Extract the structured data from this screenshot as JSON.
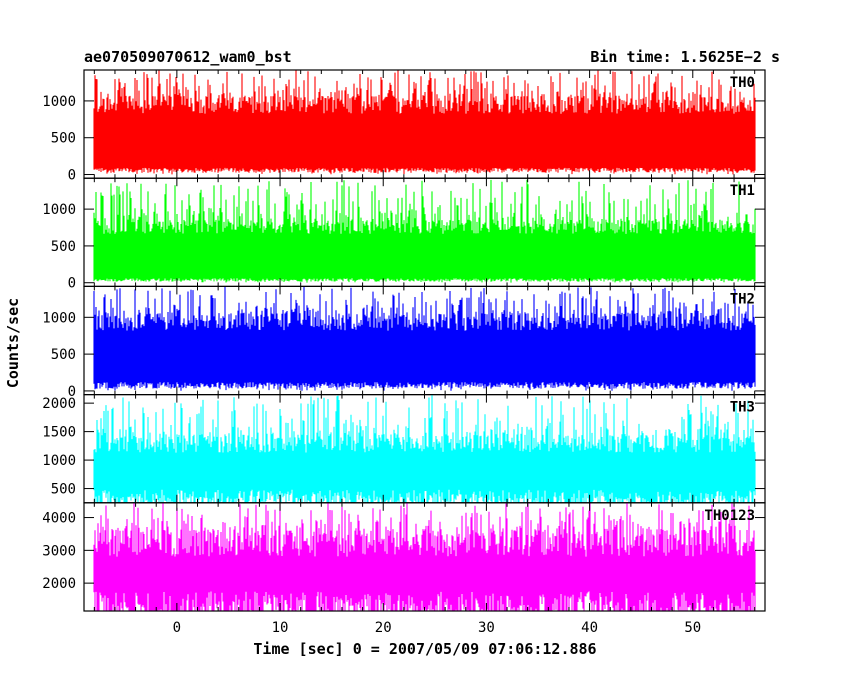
{
  "chart_data": {
    "type": "line",
    "title_left": "ae070509070612_wam0_bst",
    "title_right": "Bin time: 1.5625E−2 s",
    "xlabel": "Time [sec] 0 = 2007/05/09 07:06:12.886",
    "ylabel": "Counts/sec",
    "xlim": [
      -9,
      57
    ],
    "x_data_range": [
      -8,
      56
    ],
    "xticks": [
      0,
      10,
      20,
      30,
      40,
      50
    ],
    "xtick_labels": [
      "0",
      "10",
      "20",
      "30",
      "40",
      "50"
    ],
    "grid": false,
    "panels": [
      {
        "name": "TH0",
        "color": "#ff0000",
        "ylim": [
          -50,
          1420
        ],
        "yticks": [
          0,
          500,
          1000
        ],
        "ytick_labels": [
          "0",
          "500",
          "1000"
        ],
        "typical_low": 90,
        "typical_high": 1060,
        "peak": 1420,
        "floor": 0
      },
      {
        "name": "TH1",
        "color": "#00ff00",
        "ylim": [
          -50,
          1420
        ],
        "yticks": [
          0,
          500,
          1000
        ],
        "ytick_labels": [
          "0",
          "500",
          "1000"
        ],
        "typical_low": 60,
        "typical_high": 850,
        "peak": 1400,
        "floor": 0
      },
      {
        "name": "TH2",
        "color": "#0000ff",
        "ylim": [
          -50,
          1420
        ],
        "yticks": [
          0,
          500,
          1000
        ],
        "ytick_labels": [
          "0",
          "500",
          "1000"
        ],
        "typical_low": 120,
        "typical_high": 1050,
        "peak": 1420,
        "floor": 0
      },
      {
        "name": "TH3",
        "color": "#00ffff",
        "ylim": [
          250,
          2150
        ],
        "yticks": [
          500,
          1000,
          1500,
          2000
        ],
        "ytick_labels": [
          "500",
          "1000",
          "1500",
          "2000"
        ],
        "typical_low": 480,
        "typical_high": 1450,
        "peak": 2150,
        "floor": 250
      },
      {
        "name": "TH0123",
        "color": "#ff00ff",
        "ylim": [
          1150,
          4450
        ],
        "yticks": [
          2000,
          3000,
          4000
        ],
        "ytick_labels": [
          "2000",
          "3000",
          "4000"
        ],
        "typical_low": 1750,
        "typical_high": 3600,
        "peak": 4450,
        "floor": 1150
      }
    ]
  }
}
